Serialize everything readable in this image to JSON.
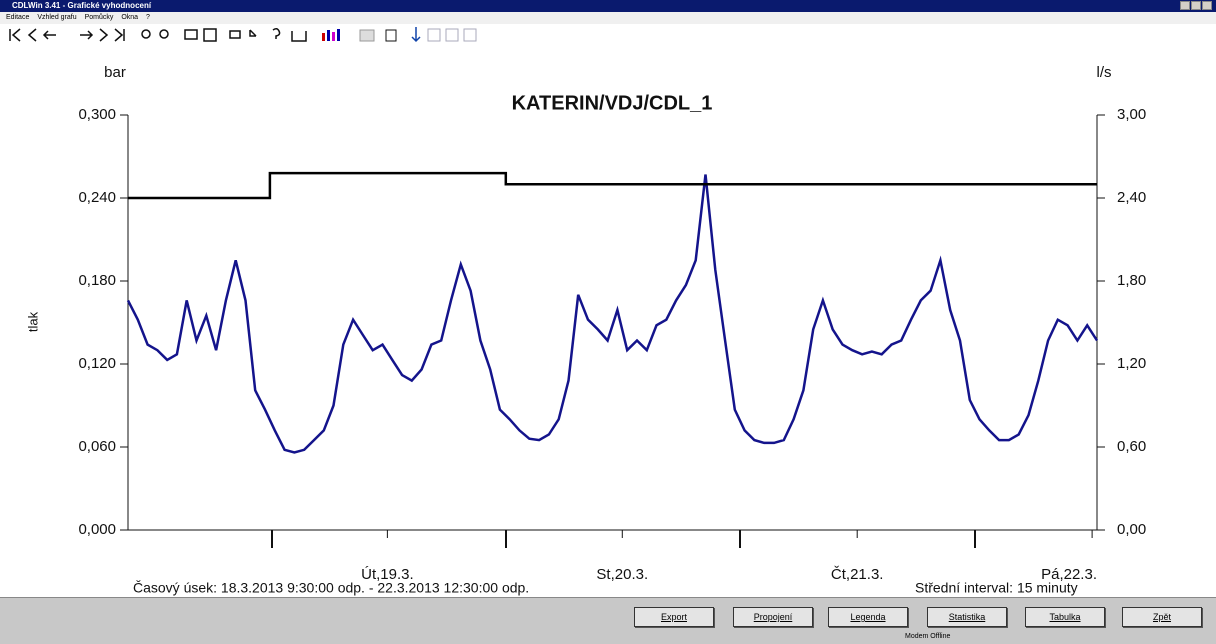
{
  "window": {
    "title": "CDLWin 3.41 - Grafické vyhodnocení"
  },
  "menu": [
    "Editace",
    "Vzhled grafu",
    "Pomůcky",
    "Okna",
    "?"
  ],
  "chart_data": {
    "type": "line",
    "title": "KATERIN/VDJ/CDL_1",
    "y_unit": "bar",
    "y2_unit": "l/s",
    "y_label": "tlak",
    "xlim": [
      0,
      99
    ],
    "xticks": [
      {
        "value": 26.5,
        "label": "Út,19.3."
      },
      {
        "value": 50.5,
        "label": "St,20.3."
      },
      {
        "value": 74.5,
        "label": "Čt,21.3."
      },
      {
        "value": 98.5,
        "label": "Pá,22.3."
      }
    ],
    "ylim": [
      0,
      0.3
    ],
    "yticks": [
      {
        "value": 0,
        "label": "0,000"
      },
      {
        "value": 0.06,
        "label": "0,060"
      },
      {
        "value": 0.12,
        "label": "0,120"
      },
      {
        "value": 0.18,
        "label": "0,180"
      },
      {
        "value": 0.24,
        "label": "0,240"
      },
      {
        "value": 0.3,
        "label": "0,300"
      }
    ],
    "y2lim": [
      0,
      3
    ],
    "y2ticks": [
      {
        "value": 0,
        "label": "0,00"
      },
      {
        "value": 0.6,
        "label": "0,60"
      },
      {
        "value": 1.2,
        "label": "1,20"
      },
      {
        "value": 1.8,
        "label": "1,80"
      },
      {
        "value": 2.4,
        "label": "2,40"
      },
      {
        "value": 3,
        "label": "3,00"
      }
    ],
    "grid": false,
    "series": [
      {
        "color": "#14148c",
        "x": [
          0,
          1,
          2,
          3,
          4,
          5,
          6,
          7,
          8,
          9,
          10,
          11,
          12,
          13,
          14,
          15,
          16,
          17,
          18,
          19,
          20,
          21,
          22,
          23,
          24,
          25,
          26,
          27,
          28,
          29,
          30,
          31,
          32,
          33,
          34,
          35,
          36,
          37,
          38,
          39,
          40,
          41,
          42,
          43,
          44,
          45,
          46,
          47,
          48,
          49,
          50,
          51,
          52,
          53,
          54,
          55,
          56,
          57,
          58,
          59,
          60,
          61,
          62,
          63,
          64,
          65,
          66,
          67,
          68,
          69,
          70,
          71,
          72,
          73,
          74,
          75,
          76,
          77,
          78,
          79,
          80,
          81,
          82,
          83,
          84,
          85,
          86,
          87,
          88,
          89,
          90,
          91,
          92,
          93,
          94,
          95,
          96,
          97,
          98,
          99
        ],
        "values": [
          0.166,
          0.152,
          0.134,
          0.13,
          0.123,
          0.127,
          0.166,
          0.137,
          0.155,
          0.13,
          0.166,
          0.195,
          0.166,
          0.101,
          0.087,
          0.072,
          0.058,
          0.056,
          0.058,
          0.065,
          0.072,
          0.09,
          0.134,
          0.152,
          0.141,
          0.13,
          0.134,
          0.123,
          0.112,
          0.108,
          0.116,
          0.134,
          0.137,
          0.166,
          0.192,
          0.173,
          0.137,
          0.116,
          0.087,
          0.08,
          0.072,
          0.066,
          0.065,
          0.069,
          0.08,
          0.108,
          0.17,
          0.152,
          0.145,
          0.137,
          0.159,
          0.13,
          0.137,
          0.13,
          0.148,
          0.152,
          0.166,
          0.177,
          0.195,
          0.257,
          0.188,
          0.137,
          0.087,
          0.072,
          0.065,
          0.063,
          0.063,
          0.065,
          0.08,
          0.101,
          0.145,
          0.166,
          0.145,
          0.134,
          0.13,
          0.127,
          0.129,
          0.127,
          0.134,
          0.137,
          0.152,
          0.166,
          0.173,
          0.195,
          0.159,
          0.137,
          0.094,
          0.08,
          0.072,
          0.065,
          0.065,
          0.069,
          0.083,
          0.108,
          0.137,
          0.152,
          0.148,
          0.137,
          0.148,
          0.137
        ]
      },
      {
        "color": "#000000",
        "axis": "y2",
        "x": [
          0,
          14.5,
          14.5,
          38.6,
          38.6,
          99
        ],
        "values": [
          2.4,
          2.4,
          2.58,
          2.58,
          2.5,
          2.5
        ]
      }
    ]
  },
  "footer": {
    "time_span": "Časový úsek: 18.3.2013 9:30:00 odp. - 22.3.2013 12:30:00 odp.",
    "interval": "Střední interval: 15 minuty"
  },
  "buttons": [
    "Export",
    "Propojení",
    "Legenda",
    "Statistika",
    "Tabulka",
    "Zpět"
  ],
  "status": "Modem Offline"
}
